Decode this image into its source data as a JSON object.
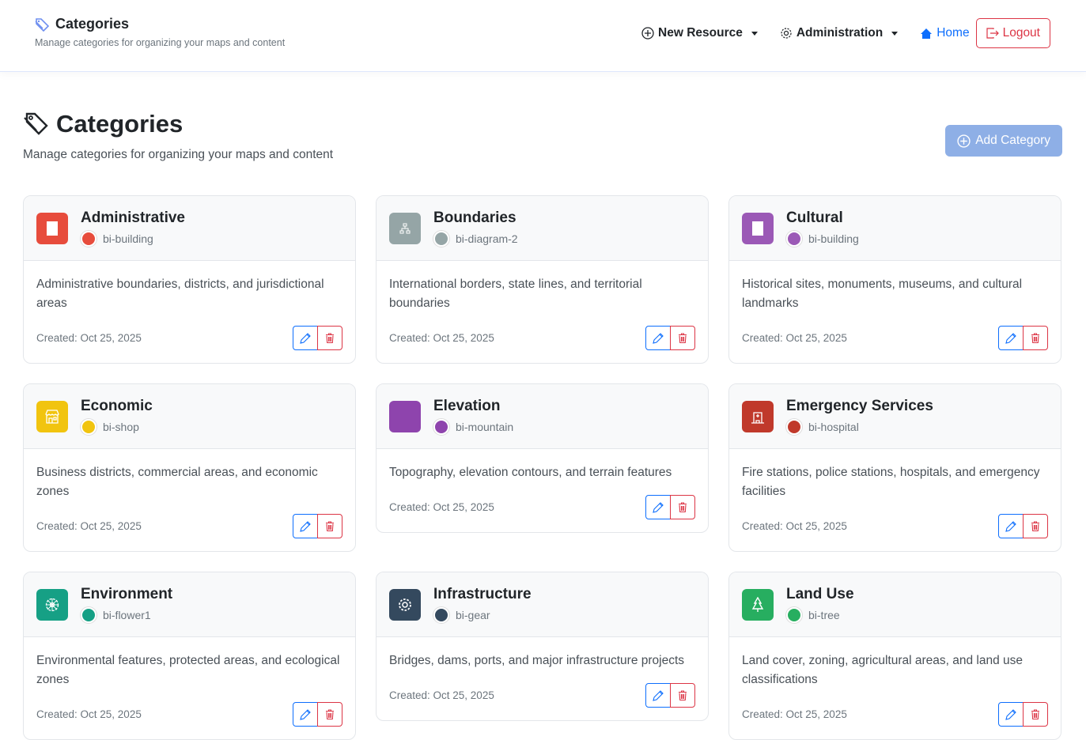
{
  "header": {
    "title": "Categories",
    "subtitle": "Manage categories for organizing your maps and content",
    "nav": {
      "new_resource": "New Resource",
      "administration": "Administration",
      "home": "Home",
      "logout": "Logout"
    }
  },
  "page": {
    "title": "Categories",
    "subtitle": "Manage categories for organizing your maps and content",
    "add_button": "Add Category"
  },
  "categories": [
    {
      "name": "Administrative",
      "icon": "bi-building",
      "color": "#e74c3c",
      "description": "Administrative boundaries, districts, and jurisdictional areas",
      "created": "Created: Oct 25, 2025"
    },
    {
      "name": "Boundaries",
      "icon": "bi-diagram-2",
      "color": "#95a5a6",
      "description": "International borders, state lines, and territorial boundaries",
      "created": "Created: Oct 25, 2025"
    },
    {
      "name": "Cultural",
      "icon": "bi-building",
      "color": "#9b59b6",
      "description": "Historical sites, monuments, museums, and cultural landmarks",
      "created": "Created: Oct 25, 2025"
    },
    {
      "name": "Economic",
      "icon": "bi-shop",
      "color": "#f1c40f",
      "description": "Business districts, commercial areas, and economic zones",
      "created": "Created: Oct 25, 2025"
    },
    {
      "name": "Elevation",
      "icon": "bi-mountain",
      "color": "#8e44ad",
      "description": "Topography, elevation contours, and terrain features",
      "created": "Created: Oct 25, 2025"
    },
    {
      "name": "Emergency Services",
      "icon": "bi-hospital",
      "color": "#c0392b",
      "description": "Fire stations, police stations, hospitals, and emergency facilities",
      "created": "Created: Oct 25, 2025"
    },
    {
      "name": "Environment",
      "icon": "bi-flower1",
      "color": "#16a085",
      "description": "Environmental features, protected areas, and ecological zones",
      "created": "Created: Oct 25, 2025"
    },
    {
      "name": "Infrastructure",
      "icon": "bi-gear",
      "color": "#34495e",
      "description": "Bridges, dams, ports, and major infrastructure projects",
      "created": "Created: Oct 25, 2025"
    },
    {
      "name": "Land Use",
      "icon": "bi-tree",
      "color": "#27ae60",
      "description": "Land cover, zoning, agricultural areas, and land use classifications",
      "created": "Created: Oct 25, 2025"
    }
  ]
}
